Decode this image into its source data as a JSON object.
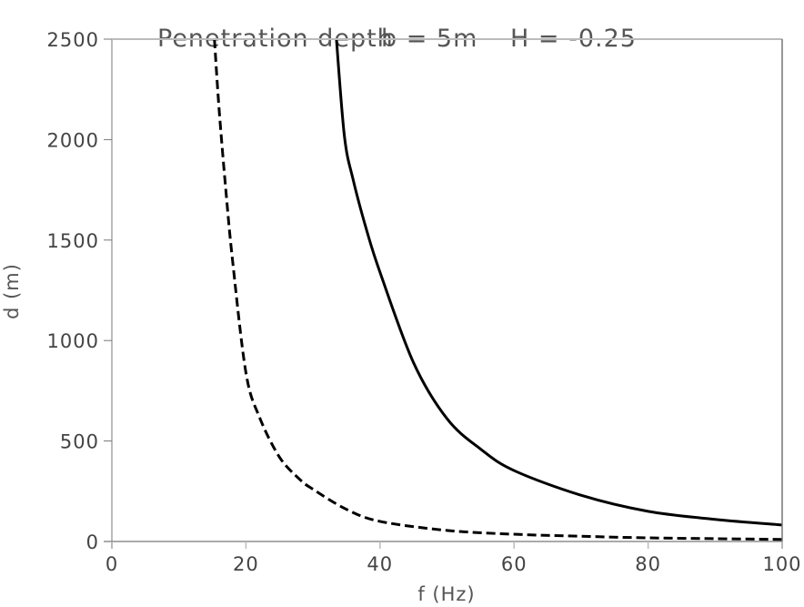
{
  "chart_data": {
    "type": "line",
    "title": "Penetration depth    b = 5m   H = -0.25",
    "title_parts": {
      "main": "Penetration depth",
      "param1": "b = 5m",
      "param2": "H = -0.25"
    },
    "xlabel": "f (Hz)",
    "ylabel": "d (m)",
    "xlim": [
      0,
      100
    ],
    "ylim": [
      0,
      2500
    ],
    "xticks": [
      0,
      20,
      40,
      60,
      80,
      100
    ],
    "yticks": [
      0,
      500,
      1000,
      1500,
      2000,
      2500
    ],
    "grid": false,
    "legend": null,
    "series": [
      {
        "name": "solid",
        "style": "solid",
        "color": "#000000",
        "x": [
          33.5,
          34.7,
          36,
          38,
          40,
          45,
          50,
          55,
          60,
          70,
          80,
          90,
          100
        ],
        "y": [
          2500,
          2015,
          1800,
          1550,
          1340,
          890,
          611,
          460,
          353,
          230,
          150,
          110,
          82
        ]
      },
      {
        "name": "dashed",
        "style": "dashed",
        "color": "#000000",
        "x": [
          15.3,
          16,
          17,
          18,
          20,
          22,
          25,
          28,
          30,
          35,
          40,
          50,
          60,
          70,
          80,
          90,
          100
        ],
        "y": [
          2500,
          2150,
          1750,
          1400,
          840,
          620,
          420,
          310,
          260,
          160,
          100,
          55,
          36,
          26,
          18,
          14,
          10
        ]
      }
    ]
  },
  "colors": {
    "curve": "#000000",
    "axis_light": "#bbbbbb",
    "axis_dark": "#777777",
    "text": "#444444"
  }
}
